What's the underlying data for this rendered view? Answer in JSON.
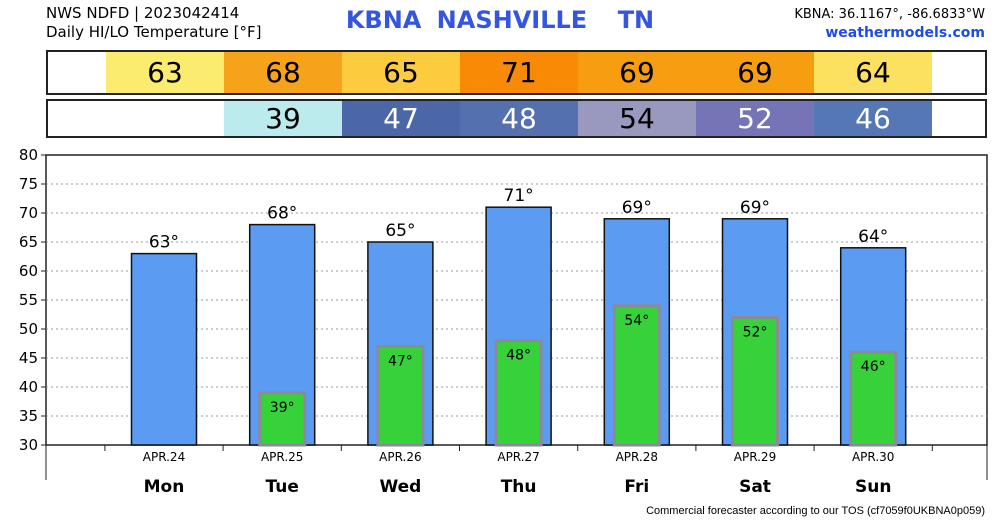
{
  "header": {
    "line1": "NWS NDFD | 2023042414",
    "line2": "Daily HI/LO Temperature [°F]",
    "station_id": "KBNA",
    "station_name": "NASHVILLE",
    "state": "TN",
    "coords": "KBNA: 36.1167°, -86.6833°W",
    "site": "weathermodels.com"
  },
  "hi_strip": [
    {
      "value": "63",
      "color": "#fbeb6e"
    },
    {
      "value": "68",
      "color": "#f7a21b"
    },
    {
      "value": "65",
      "color": "#fdcb3e"
    },
    {
      "value": "71",
      "color": "#f98a05"
    },
    {
      "value": "69",
      "color": "#f79d10"
    },
    {
      "value": "69",
      "color": "#f79d10"
    },
    {
      "value": "64",
      "color": "#fbe15f"
    }
  ],
  "lo_strip": [
    {
      "value": "",
      "color": "#ffffff",
      "text_color": "#000000"
    },
    {
      "value": "39",
      "color": "#bcebee",
      "text_color": "#000000"
    },
    {
      "value": "47",
      "color": "#4b67a8",
      "text_color": "#ffffff"
    },
    {
      "value": "48",
      "color": "#5470ae",
      "text_color": "#ffffff"
    },
    {
      "value": "54",
      "color": "#9999c0",
      "text_color": "#000000"
    },
    {
      "value": "52",
      "color": "#7574b7",
      "text_color": "#ffffff"
    },
    {
      "value": "46",
      "color": "#5577b6",
      "text_color": "#ffffff"
    }
  ],
  "chart_data": {
    "type": "bar",
    "categories": [
      "Mon",
      "Tue",
      "Wed",
      "Thu",
      "Fri",
      "Sat",
      "Sun"
    ],
    "dates": [
      "APR.24",
      "APR.25",
      "APR.26",
      "APR.27",
      "APR.28",
      "APR.29",
      "APR.30"
    ],
    "series": [
      {
        "values": [
          63,
          68,
          65,
          71,
          69,
          69,
          64
        ],
        "color": "#5b9cf2",
        "labels": [
          "63°",
          "68°",
          "65°",
          "71°",
          "69°",
          "69°",
          "64°"
        ]
      },
      {
        "values": [
          null,
          39,
          47,
          48,
          54,
          52,
          46
        ],
        "color": "#37d13a",
        "labels": [
          "",
          "39°",
          "47°",
          "48°",
          "54°",
          "52°",
          "46°"
        ]
      }
    ],
    "ylim": [
      30,
      80
    ],
    "yticks": [
      "30",
      "35",
      "40",
      "45",
      "50",
      "55",
      "60",
      "65",
      "70",
      "75",
      "80"
    ],
    "grid": true
  },
  "footer": "Commercial forecaster according to our TOS (cf7059f0UKBNA0p059)"
}
